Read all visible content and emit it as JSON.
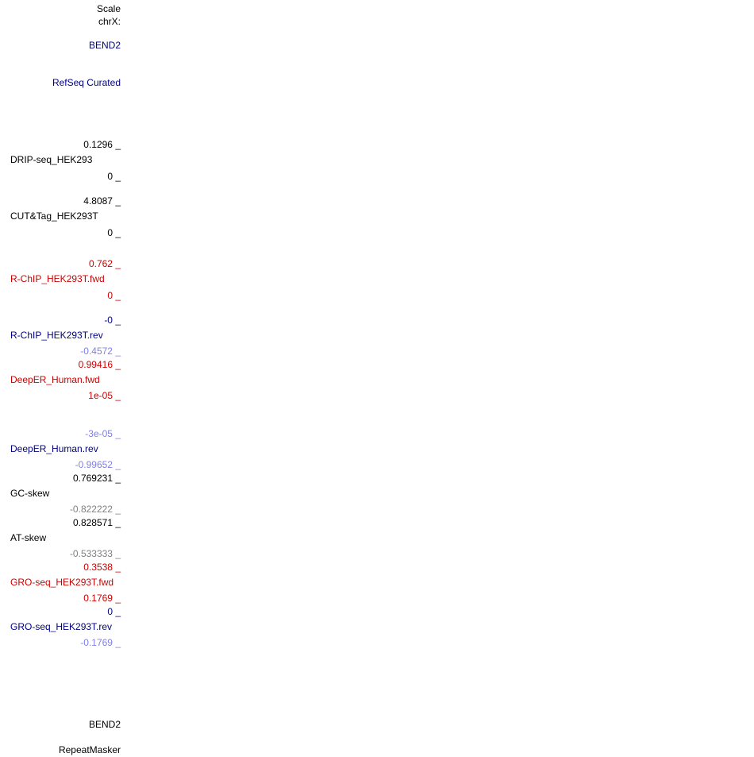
{
  "header": {
    "scale_label": "Scale",
    "chrom_label": "chrX:"
  },
  "gene_label_top": "BEND2",
  "refseq_label": "RefSeq Curated",
  "tracks": [
    {
      "name": "DRIP-seq_HEK293",
      "max": "0.1296 _",
      "min": "0 _",
      "color": "#000000"
    },
    {
      "name": "CUT&Tag_HEK293T",
      "max": "4.8087 _",
      "min": "0 _",
      "color": "#000000"
    },
    {
      "name": "R-ChIP_HEK293T.fwd",
      "max": "0.762 _",
      "min": "0 _",
      "color": "#cc0000"
    },
    {
      "name": "R-ChIP_HEK293T.rev",
      "max": "-0 _",
      "min": "-0.4572 _",
      "color": "#000080",
      "min_color": "#7f7fe6"
    },
    {
      "name": "DeepER_Human.fwd",
      "max": "0.99416 _",
      "min": "1e-05 _",
      "color": "#cc0000"
    },
    {
      "name": "DeepER_Human.rev",
      "max": "-3e-05 _",
      "min": "-0.99652 _",
      "color": "#000080",
      "max_color": "#7f7fe6",
      "min_color": "#7f7fe6"
    },
    {
      "name": "GC-skew",
      "max": "0.769231 _",
      "min": "-0.822222 _",
      "color": "#000000",
      "min_color": "#808080"
    },
    {
      "name": "AT-skew",
      "max": "0.828571 _",
      "min": "-0.533333 _",
      "color": "#000000",
      "min_color": "#808080"
    },
    {
      "name": "GRO-seq_HEK293T.fwd",
      "max": "0.3538 _",
      "min": "0.1769 _",
      "color": "#cc0000"
    },
    {
      "name": "GRO-seq_HEK293T.rev",
      "max": "0 _",
      "min": "-0.1769 _",
      "color": "#000080",
      "max_color": "#000080",
      "min_color": "#7f7fe6"
    }
  ],
  "gene_label_bottom": "BEND2",
  "repeatmasker_label": "RepeatMasker"
}
